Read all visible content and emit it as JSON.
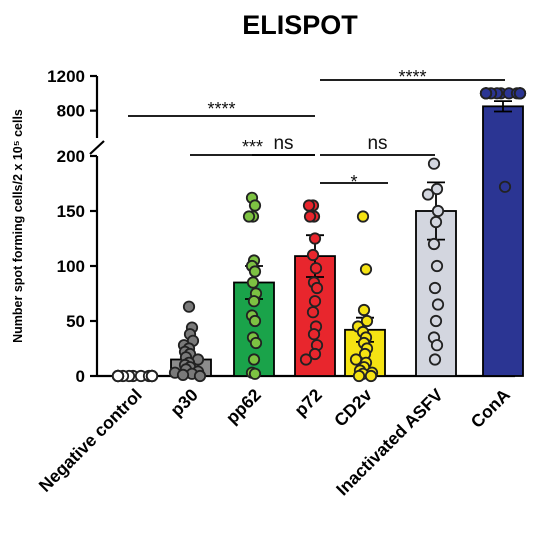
{
  "chart_data": {
    "type": "bar",
    "title": "ELISPOT",
    "ylabel": "Number spot forming cells/2 x 10⁵ cells",
    "xlabel": "",
    "categories": [
      "Negative control",
      "p30",
      "pp62",
      "p72",
      "CD2v",
      "Inactivated ASFV",
      "ConA"
    ],
    "y_axis": {
      "broken": true,
      "lower_segment": [
        0,
        200
      ],
      "upper_segment": [
        600,
        1200
      ],
      "ticks_lower": [
        0,
        50,
        100,
        150,
        200
      ],
      "ticks_upper": [
        800,
        1200
      ],
      "tick_labels": [
        "0",
        "50",
        "100",
        "150",
        "200",
        "800",
        "1200"
      ]
    },
    "colors": {
      "Negative control": "#ffffff",
      "p30": "#8c8c8c",
      "pp62": "#1aa34a",
      "p72": "#e8262d",
      "CD2v": "#f5e313",
      "Inactivated ASFV": "#d3d6df",
      "ConA": "#2b3593"
    },
    "point_colors": {
      "Negative control": "#ffffff",
      "p30": "#7a7a7a",
      "pp62": "#7dc242",
      "p72": "#e8262d",
      "CD2v": "#f5e313",
      "Inactivated ASFV": "#d3d6df",
      "ConA": "#2b3593"
    },
    "bars": [
      {
        "category": "Negative control",
        "mean": 0,
        "sem": 0,
        "points": [
          0,
          0,
          0,
          0,
          0,
          0,
          0,
          0,
          0,
          0,
          0,
          0,
          0,
          0,
          0,
          0,
          0,
          0
        ]
      },
      {
        "category": "p30",
        "mean": 15,
        "sem": 4,
        "points": [
          63,
          44,
          38,
          32,
          28,
          25,
          22,
          20,
          17,
          15,
          12,
          10,
          8,
          6,
          4,
          3,
          2,
          1,
          0
        ]
      },
      {
        "category": "pp62",
        "mean": 85,
        "sem": 15,
        "points": [
          162,
          155,
          145,
          145,
          105,
          100,
          95,
          85,
          75,
          68,
          55,
          50,
          35,
          30,
          15,
          3,
          2
        ]
      },
      {
        "category": "p72",
        "mean": 109,
        "sem": 19,
        "points": [
          155,
          155,
          145,
          145,
          125,
          110,
          98,
          85,
          80,
          68,
          58,
          45,
          38,
          28,
          20,
          15
        ]
      },
      {
        "category": "CD2v",
        "mean": 42,
        "sem": 11,
        "points": [
          145,
          97,
          60,
          50,
          45,
          40,
          35,
          30,
          25,
          20,
          15,
          12,
          8,
          5,
          3,
          2,
          0,
          0
        ]
      },
      {
        "category": "Inactivated ASFV",
        "mean": 150,
        "sem": 26,
        "points": [
          193,
          170,
          165,
          150,
          140,
          120,
          100,
          80,
          65,
          50,
          35,
          28,
          15
        ]
      },
      {
        "category": "ConA",
        "mean": 850,
        "sem": 60,
        "points": [
          1000,
          1000,
          1000,
          1000,
          1000,
          1000,
          1000,
          1000,
          1000,
          1000,
          1000,
          1000,
          1000,
          172
        ]
      }
    ],
    "significance": [
      {
        "from": "Negative control",
        "to": "p72",
        "label": "****"
      },
      {
        "from": "p30",
        "to": "p72",
        "label": "***"
      },
      {
        "from": "pp62",
        "to": "p72",
        "label": "ns"
      },
      {
        "from": "p72",
        "to": "ConA",
        "label": "****"
      },
      {
        "from": "p72",
        "to": "Inactivated ASFV",
        "label": "ns"
      },
      {
        "from": "p72",
        "to": "CD2v",
        "label": "*"
      }
    ],
    "grid": false,
    "legend": "none"
  }
}
